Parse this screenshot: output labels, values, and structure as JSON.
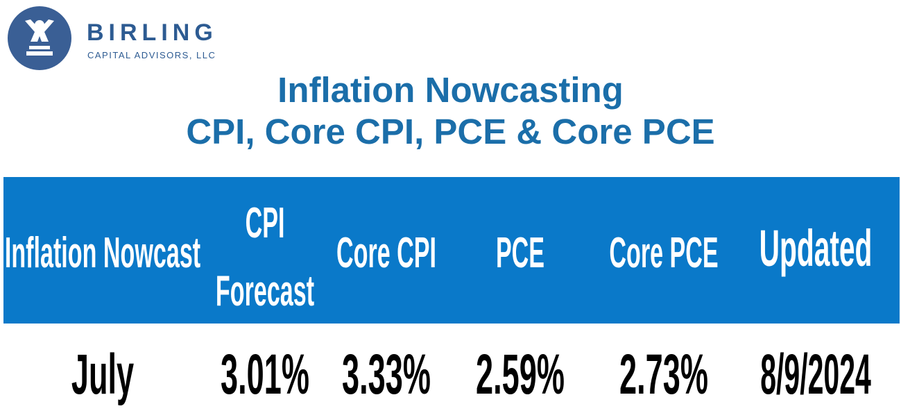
{
  "logo": {
    "name": "BIRLING",
    "subtitle": "CAPITAL ADVISORS, LLC"
  },
  "title": {
    "line1": "Inflation Nowcasting",
    "line2": "CPI, Core CPI, PCE & Core PCE"
  },
  "table": {
    "header": [
      "Inflation Nowcast",
      "CPI Forecast",
      "Core CPI",
      "PCE",
      "Core PCE",
      "Updated"
    ],
    "rows": [
      [
        "July",
        "3.01%",
        "3.33%",
        "2.59%",
        "2.73%",
        "8/9/2024"
      ]
    ]
  }
}
